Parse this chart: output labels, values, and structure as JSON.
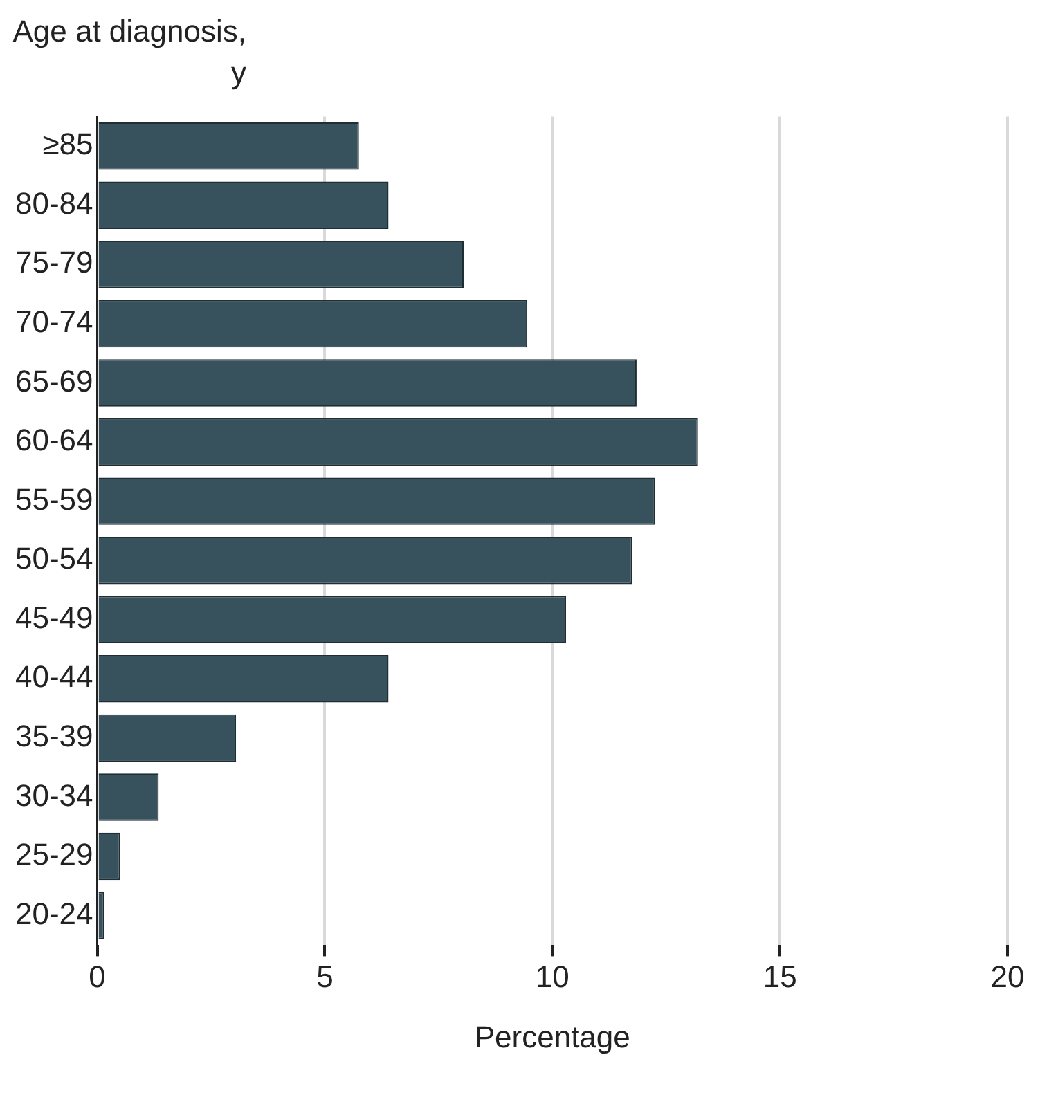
{
  "chart_data": {
    "type": "bar",
    "orientation": "horizontal",
    "ylabel": "Age at diagnosis, y",
    "xlabel": "Percentage",
    "categories": [
      "≥85",
      "80-84",
      "75-79",
      "70-74",
      "65-69",
      "60-64",
      "55-59",
      "50-54",
      "45-49",
      "40-44",
      "35-39",
      "30-34",
      "25-29",
      "20-24"
    ],
    "values": [
      5.75,
      6.4,
      8.05,
      9.45,
      11.85,
      13.2,
      12.25,
      11.75,
      10.3,
      6.4,
      3.05,
      1.35,
      0.5,
      0.15
    ],
    "color": "#37525c",
    "xlim": [
      0,
      20
    ],
    "xticks": [
      0,
      5,
      10,
      15,
      20
    ],
    "grid": "x",
    "legend": false
  }
}
